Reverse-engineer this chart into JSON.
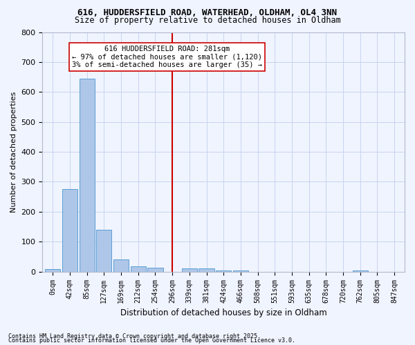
{
  "title1": "616, HUDDERSFIELD ROAD, WATERHEAD, OLDHAM, OL4 3NN",
  "title2": "Size of property relative to detached houses in Oldham",
  "xlabel": "Distribution of detached houses by size in Oldham",
  "ylabel": "Number of detached properties",
  "bar_labels": [
    "0sqm",
    "42sqm",
    "85sqm",
    "127sqm",
    "169sqm",
    "212sqm",
    "254sqm",
    "296sqm",
    "339sqm",
    "381sqm",
    "424sqm",
    "466sqm",
    "508sqm",
    "551sqm",
    "593sqm",
    "635sqm",
    "678sqm",
    "720sqm",
    "762sqm",
    "805sqm",
    "847sqm"
  ],
  "bar_values": [
    8,
    275,
    645,
    140,
    40,
    18,
    12,
    0,
    10,
    10,
    5,
    5,
    0,
    0,
    0,
    0,
    0,
    0,
    5,
    0,
    0
  ],
  "bar_color": "#aec6e8",
  "bar_edge_color": "#5a9fd4",
  "annotation_text": "616 HUDDERSFIELD ROAD: 281sqm\n← 97% of detached houses are smaller (1,120)\n3% of semi-detached houses are larger (35) →",
  "vline_x": 7,
  "vline_color": "#cc0000",
  "annotation_box_color": "#ffffff",
  "annotation_box_edge_color": "#cc0000",
  "ylim": [
    0,
    800
  ],
  "yticks": [
    0,
    100,
    200,
    300,
    400,
    500,
    600,
    700,
    800
  ],
  "background_color": "#f0f4ff",
  "grid_color": "#c8d4f0",
  "footer1": "Contains HM Land Registry data © Crown copyright and database right 2025.",
  "footer2": "Contains public sector information licensed under the Open Government Licence v3.0."
}
